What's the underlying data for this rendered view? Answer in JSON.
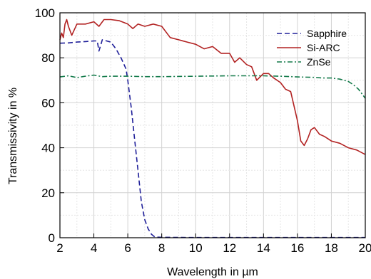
{
  "chart_data": {
    "type": "line",
    "title": "",
    "xlabel": "Wavelength in µm",
    "ylabel": "Transmissivity in %",
    "xlim": [
      2,
      20
    ],
    "ylim": [
      0,
      100
    ],
    "xticks": [
      2,
      4,
      6,
      8,
      10,
      12,
      14,
      16,
      18,
      20
    ],
    "yticks": [
      0,
      20,
      40,
      60,
      80,
      100
    ],
    "grid": true,
    "legend_position": "top-right",
    "series": [
      {
        "name": "Sapphire",
        "color": "#1f1f99",
        "dash": "dashed",
        "x": [
          2,
          2.5,
          3,
          3.5,
          4,
          4.2,
          4.3,
          4.5,
          5,
          5.3,
          5.6,
          5.9,
          6.0,
          6.2,
          6.4,
          6.6,
          6.8,
          7.0,
          7.2,
          7.4,
          7.6,
          8,
          10,
          14,
          20
        ],
        "y": [
          86.5,
          86.6,
          87,
          87.2,
          87.5,
          87.5,
          83,
          88,
          87,
          84,
          80,
          75,
          70,
          58,
          44,
          30,
          16,
          8,
          4,
          1.5,
          0.3,
          0.2,
          0.1,
          0.1,
          0.1
        ]
      },
      {
        "name": "Si-ARC",
        "color": "#b22222",
        "dash": "solid",
        "x": [
          2,
          2.1,
          2.2,
          2.3,
          2.4,
          2.5,
          2.7,
          3.0,
          3.5,
          4.0,
          4.3,
          4.6,
          5,
          5.5,
          6,
          6.3,
          6.6,
          7,
          7.5,
          8,
          8.5,
          9,
          9.5,
          10,
          10.5,
          11,
          11.5,
          12,
          12.3,
          12.6,
          13,
          13.3,
          13.6,
          14,
          14.3,
          14.6,
          15,
          15.3,
          15.6,
          16,
          16.2,
          16.4,
          16.6,
          16.8,
          17,
          17.3,
          17.6,
          18,
          18.5,
          19,
          19.5,
          20
        ],
        "y": [
          88,
          91,
          89,
          95,
          97,
          94,
          90,
          95,
          95,
          96,
          94,
          97,
          97,
          96.5,
          95,
          93,
          95,
          94,
          95,
          94,
          89,
          88,
          87,
          86,
          84,
          85,
          82,
          82,
          78,
          80,
          77,
          76,
          70,
          73,
          73,
          71,
          69,
          66,
          65,
          52,
          43,
          41,
          44,
          48,
          49,
          46,
          45,
          43,
          42,
          40,
          39,
          37
        ]
      },
      {
        "name": "ZnSe",
        "color": "#137a4a",
        "dash": "dashdot",
        "x": [
          2,
          2.5,
          3,
          3.5,
          4,
          4.5,
          5,
          6,
          7,
          8,
          10,
          12,
          13,
          14,
          15,
          16,
          17,
          17.5,
          18,
          18.5,
          19,
          19.3,
          19.6,
          20
        ],
        "y": [
          71.5,
          72,
          71.2,
          71.8,
          72.3,
          71.6,
          71.8,
          71.8,
          71.6,
          71.6,
          71.8,
          72,
          72,
          72,
          71.8,
          71.5,
          71.3,
          71,
          71,
          70.5,
          69.5,
          68,
          66,
          62
        ]
      }
    ]
  }
}
